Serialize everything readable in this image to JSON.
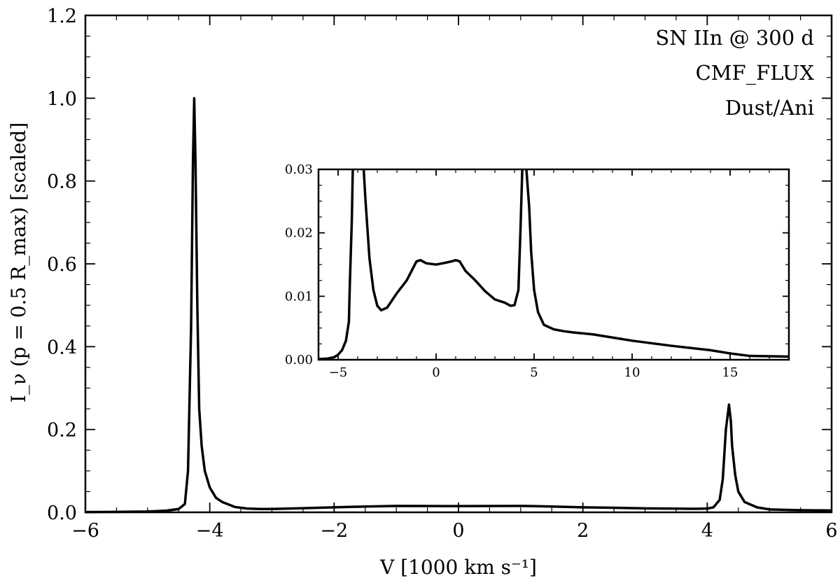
{
  "chart_data": [
    {
      "type": "line",
      "xlabel": "V [1000 km s⁻¹]",
      "ylabel": "I_ν (p = 0.5 R_max) [scaled]",
      "xlim": [
        -6,
        6
      ],
      "ylim": [
        0,
        1.2
      ],
      "x_ticks": [
        -6,
        -4,
        -2,
        0,
        2,
        4,
        6
      ],
      "x_tick_labels": [
        "−6",
        "−4",
        "−2",
        "0",
        "2",
        "4",
        "6"
      ],
      "y_ticks": [
        0.0,
        0.2,
        0.4,
        0.6,
        0.8,
        1.0,
        1.2
      ],
      "y_tick_labels": [
        "0.0",
        "0.2",
        "0.4",
        "0.6",
        "0.8",
        "1.0",
        "1.2"
      ],
      "annotations": [
        "SN IIn @ 300 d",
        "CMF_FLUX",
        "Dust/Ani"
      ],
      "grid": false,
      "series": [
        {
          "x": [
            -6.0,
            -5.5,
            -5.0,
            -4.7,
            -4.5,
            -4.4,
            -4.35,
            -4.3,
            -4.27,
            -4.25,
            -4.23,
            -4.2,
            -4.17,
            -4.13,
            -4.08,
            -4.0,
            -3.9,
            -3.8,
            -3.6,
            -3.4,
            -3.2,
            -3.0,
            -2.5,
            -2.0,
            -1.5,
            -1.0,
            -0.5,
            0.0,
            0.5,
            1.0,
            1.2,
            1.5,
            2.0,
            2.5,
            3.0,
            3.5,
            3.8,
            4.0,
            4.1,
            4.2,
            4.25,
            4.3,
            4.35,
            4.38,
            4.4,
            4.45,
            4.5,
            4.6,
            4.8,
            5.0,
            5.5,
            6.0
          ],
          "y": [
            0.0005,
            0.001,
            0.002,
            0.004,
            0.008,
            0.02,
            0.1,
            0.45,
            0.85,
            1.0,
            0.85,
            0.5,
            0.25,
            0.16,
            0.1,
            0.06,
            0.035,
            0.025,
            0.013,
            0.009,
            0.008,
            0.008,
            0.01,
            0.012,
            0.014,
            0.0155,
            0.0152,
            0.015,
            0.0153,
            0.0155,
            0.015,
            0.014,
            0.012,
            0.011,
            0.0095,
            0.0088,
            0.0085,
            0.009,
            0.012,
            0.03,
            0.08,
            0.2,
            0.26,
            0.22,
            0.16,
            0.09,
            0.05,
            0.025,
            0.012,
            0.007,
            0.005,
            0.0045
          ]
        }
      ]
    },
    {
      "type": "line",
      "inset": true,
      "xlim": [
        -6,
        18
      ],
      "ylim": [
        0,
        0.03
      ],
      "x_ticks": [
        -5,
        0,
        5,
        10,
        15
      ],
      "x_tick_labels": [
        "−5",
        "0",
        "5",
        "10",
        "15"
      ],
      "y_ticks": [
        0.0,
        0.01,
        0.02,
        0.03
      ],
      "y_tick_labels": [
        "0.00",
        "0.01",
        "0.02",
        "0.03"
      ],
      "grid": false,
      "series": [
        {
          "x": [
            -6.0,
            -5.5,
            -5.2,
            -5.0,
            -4.8,
            -4.6,
            -4.45,
            -4.4,
            -4.3,
            -4.25,
            -4.2,
            -3.7,
            -3.6,
            -3.4,
            -3.2,
            -3.0,
            -2.8,
            -2.5,
            -2.0,
            -1.5,
            -1.0,
            -0.8,
            -0.5,
            0.0,
            0.5,
            0.8,
            1.0,
            1.2,
            1.5,
            2.0,
            2.5,
            3.0,
            3.5,
            3.8,
            4.0,
            4.2,
            4.3,
            4.4,
            4.6,
            4.75,
            4.85,
            5.0,
            5.2,
            5.5,
            6.0,
            6.5,
            7.0,
            8.0,
            10.0,
            12.0,
            14.0,
            15.0,
            16.0,
            18.0
          ],
          "y": [
            0.0001,
            0.0002,
            0.0004,
            0.0008,
            0.0015,
            0.003,
            0.006,
            0.012,
            0.022,
            0.03,
            0.032,
            0.032,
            0.025,
            0.016,
            0.011,
            0.0085,
            0.0078,
            0.0082,
            0.0105,
            0.0125,
            0.0155,
            0.0157,
            0.0152,
            0.015,
            0.0153,
            0.0155,
            0.0157,
            0.0155,
            0.014,
            0.0125,
            0.0108,
            0.0095,
            0.009,
            0.0085,
            0.0086,
            0.011,
            0.02,
            0.032,
            0.032,
            0.024,
            0.017,
            0.011,
            0.0075,
            0.0055,
            0.0048,
            0.0045,
            0.0043,
            0.004,
            0.003,
            0.0022,
            0.0015,
            0.001,
            0.0006,
            0.0005
          ]
        }
      ]
    }
  ]
}
